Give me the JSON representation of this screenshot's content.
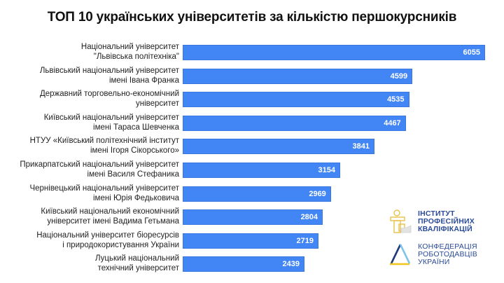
{
  "title": "ТОП 10 українських університетів за кількістю першокурсників",
  "bar_color": "#4285f4",
  "rows": [
    {
      "line1": "Національний університет",
      "line2": "\"Львівська політехніка\"",
      "value": "6055"
    },
    {
      "line1": "Львівський національний університет",
      "line2": "імені Івана Франка",
      "value": "4599"
    },
    {
      "line1": "Державний торговельно-економічний",
      "line2": "університет",
      "value": "4535"
    },
    {
      "line1": "Київський національний університет",
      "line2": "імені Тараса Шевченка",
      "value": "4467"
    },
    {
      "line1": "НТУУ «Київський політехнічний інститут",
      "line2": "імені Ігоря Сікорського»",
      "value": "3841"
    },
    {
      "line1": "Прикарпатський національний університет",
      "line2": "імені Василя Стефаника",
      "value": "3154"
    },
    {
      "line1": "Чернівецький національний університет",
      "line2": "імені Юрія Федьковича",
      "value": "2969"
    },
    {
      "line1": "Київський національний економічний",
      "line2": "університет імені Вадима Гетьмана",
      "value": "2804"
    },
    {
      "line1": "Національний університет біоресурсів",
      "line2": "і природокористування України",
      "value": "2719"
    },
    {
      "line1": "Луцький національний",
      "line2": "технічний університет",
      "value": "2439"
    }
  ],
  "logos": {
    "ipk": {
      "line1": "ІНСТИТУТ",
      "line2": "ПРОФЕСІЙНИХ",
      "line3": "КВАЛІФІКАЦІЙ"
    },
    "krou": {
      "line1": "КОНФЕДЕРАЦІЯ",
      "line2": "РОБОТОДАВЦІВ",
      "line3": "УКРАЇНИ"
    }
  },
  "chart_data": {
    "type": "bar",
    "orientation": "horizontal",
    "title": "ТОП 10 українських університетів за кількістю першокурсників",
    "categories": [
      "Національний університет \"Львівська політехніка\"",
      "Львівський національний університет імені Івана Франка",
      "Державний торговельно-економічний університет",
      "Київський національний університет імені Тараса Шевченка",
      "НТУУ «Київський політехнічний інститут імені Ігоря Сікорського»",
      "Прикарпатський національний університет імені Василя Стефаника",
      "Чернівецький національний університет імені Юрія Федьковича",
      "Київський національний економічний університет імені Вадима Гетьмана",
      "Національний університет біоресурсів і природокористування України",
      "Луцький національний технічний університет"
    ],
    "values": [
      6055,
      4599,
      4535,
      4467,
      3841,
      3154,
      2969,
      2804,
      2719,
      2439
    ],
    "xlabel": "",
    "ylabel": "",
    "grid": false,
    "legend": "none",
    "data_labels": "inside-end"
  }
}
